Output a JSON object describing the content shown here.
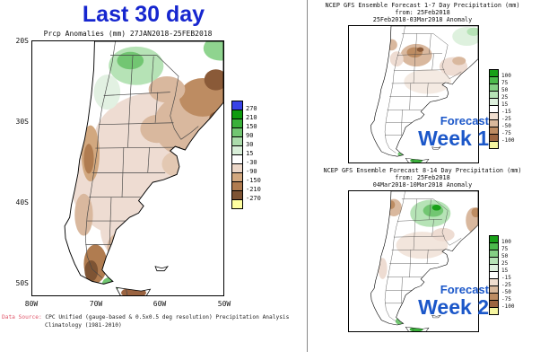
{
  "colors": {
    "title_blue": "#1626cf",
    "overlay_blue": "#1b57c9",
    "source_red": "#e0566a"
  },
  "left_panel": {
    "title": "Last 30 day",
    "subtitle": "Prcp Anomalies (mm) 27JAN2018-25FEB2018",
    "lat_ticks": [
      "20S",
      "30S",
      "40S",
      "50S"
    ],
    "lon_ticks": [
      "80W",
      "70W",
      "60W",
      "50W"
    ],
    "legend": {
      "labels": [
        "270",
        "210",
        "150",
        "90",
        "30",
        "15",
        "-30",
        "-90",
        "-150",
        "-210",
        "-270"
      ],
      "colors": [
        "#3943e6",
        "#0f9b0f",
        "#3ab03a",
        "#72c672",
        "#abdcab",
        "#d9efd9",
        "#ffffff",
        "#ecd7c8",
        "#d2a87f",
        "#b07c50",
        "#7e5434",
        "#ffffa0"
      ]
    },
    "source_label": "Data Source:",
    "source_text": " CPC Unified (gauge-based & 0.5x0.5 deg resolution) Precipitation Analysis",
    "source_line2": "Climatology (1981-2010)"
  },
  "week1_panel": {
    "title_line1": "NCEP GFS Ensemble Forecast 1-7 Day Precipitation (mm)",
    "title_line2": "from: 25Feb2018",
    "title_line3": "25Feb2018-03Mar2018 Anomaly",
    "overlay_line1": "Forecast",
    "overlay_line2": "Week 1",
    "legend": {
      "labels": [
        "100",
        "75",
        "50",
        "25",
        "15",
        "-15",
        "-25",
        "-50",
        "-75",
        "-100"
      ],
      "colors": [
        "#18a018",
        "#4cba4c",
        "#84cf84",
        "#b6e3b6",
        "#def1de",
        "#ffffff",
        "#f0decf",
        "#d9b99c",
        "#bd8c62",
        "#9c6540",
        "#f5f5a0"
      ]
    }
  },
  "week2_panel": {
    "title_line1": "NCEP GFS Ensemble Forecast 8-14 Day Precipitation (mm)",
    "title_line2": "from: 25Feb2018",
    "title_line3": "04Mar2018-10Mar2018 Anomaly",
    "overlay_line1": "Forecast",
    "overlay_line2": "Week 2",
    "legend": {
      "labels": [
        "100",
        "75",
        "50",
        "25",
        "15",
        "-15",
        "-25",
        "-50",
        "-75",
        "-100"
      ],
      "colors": [
        "#18a018",
        "#4cba4c",
        "#84cf84",
        "#b6e3b6",
        "#def1de",
        "#ffffff",
        "#f0decf",
        "#d9b99c",
        "#bd8c62",
        "#9c6540",
        "#f5f5a0"
      ]
    }
  }
}
